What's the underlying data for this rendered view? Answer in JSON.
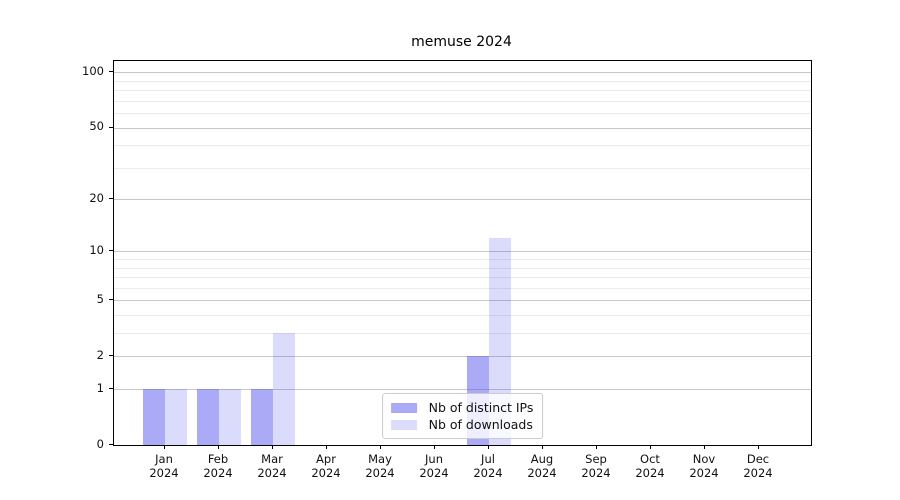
{
  "chart_data": {
    "type": "bar",
    "title": "memuse 2024",
    "scale": "log1p",
    "categories": [
      "Jan",
      "Feb",
      "Mar",
      "Apr",
      "May",
      "Jun",
      "Jul",
      "Aug",
      "Sep",
      "Oct",
      "Nov",
      "Dec"
    ],
    "category_year": "2024",
    "series": [
      {
        "name": "Nb of distinct IPs",
        "color_effective": "#aaaaf8",
        "base_color": "#5555f0",
        "alpha": 0.5,
        "values": [
          1,
          1,
          1,
          0,
          0,
          0,
          2,
          0,
          0,
          0,
          0,
          0
        ]
      },
      {
        "name": "Nb of downloads",
        "color_effective": "#dbdbf8",
        "base_color": "#5555f0",
        "alpha": 0.21,
        "values": [
          1,
          1,
          3,
          0,
          0,
          0,
          12,
          0,
          0,
          0,
          0,
          0
        ]
      }
    ],
    "y_ticks": [
      0,
      1,
      2,
      5,
      10,
      20,
      50,
      100
    ],
    "grid_major": [
      1,
      2,
      5,
      10,
      20,
      50,
      100
    ],
    "grid_minor": [
      3,
      4,
      6,
      7,
      8,
      9,
      30,
      40,
      60,
      70,
      80,
      90
    ],
    "ylim": [
      0,
      115.2
    ],
    "xlabel": "",
    "ylabel": "",
    "grid": true,
    "legend_position": "lower center",
    "colors": {
      "grid_major": "#c6c6c6",
      "grid_minor": "#ebebeb",
      "axis": "#000000",
      "tick_text": "#111111",
      "background": "#ffffff"
    }
  }
}
